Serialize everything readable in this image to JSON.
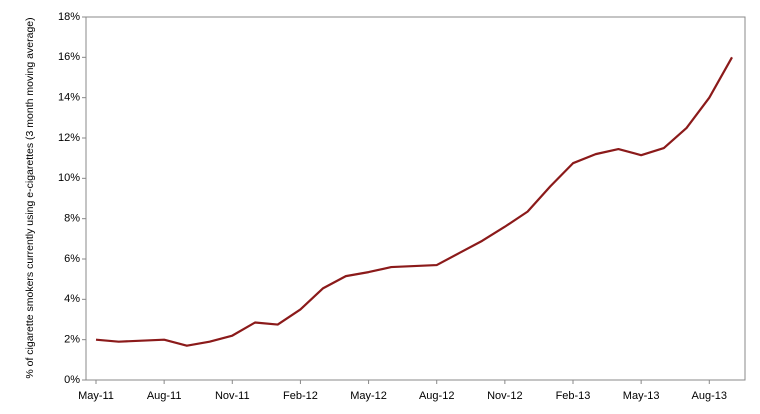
{
  "chart_data": {
    "type": "line",
    "y_label": "% of cigarette smokers currently using e-cigarettes (3 month moving average)",
    "categories": [
      "May-11",
      null,
      null,
      "Aug-11",
      null,
      null,
      "Nov-11",
      null,
      null,
      "Feb-12",
      null,
      null,
      "May-12",
      null,
      null,
      "Aug-12",
      null,
      null,
      "Nov-12",
      null,
      null,
      "Feb-13",
      null,
      null,
      "May-13",
      null,
      null,
      "Aug-13",
      null
    ],
    "series": [
      {
        "color": "#8b1a1a",
        "values": [
          2.0,
          1.9,
          1.95,
          2.0,
          1.7,
          1.9,
          2.2,
          2.85,
          2.75,
          3.5,
          4.55,
          5.15,
          5.35,
          5.6,
          5.65,
          5.7,
          6.3,
          6.9,
          7.6,
          8.35,
          9.6,
          10.75,
          11.2,
          11.45,
          11.15,
          11.5,
          12.5,
          14.0,
          16.0
        ]
      }
    ],
    "ylim": [
      0,
      18
    ],
    "yticks": [
      {
        "value": 0,
        "label": "0%"
      },
      {
        "value": 2,
        "label": "2%"
      },
      {
        "value": 4,
        "label": "4%"
      },
      {
        "value": 6,
        "label": "6%"
      },
      {
        "value": 8,
        "label": "8%"
      },
      {
        "value": 10,
        "label": "10%"
      },
      {
        "value": 12,
        "label": "12%"
      },
      {
        "value": 14,
        "label": "14%"
      },
      {
        "value": 16,
        "label": "16%"
      },
      {
        "value": 18,
        "label": "18%"
      }
    ],
    "grid": false
  }
}
